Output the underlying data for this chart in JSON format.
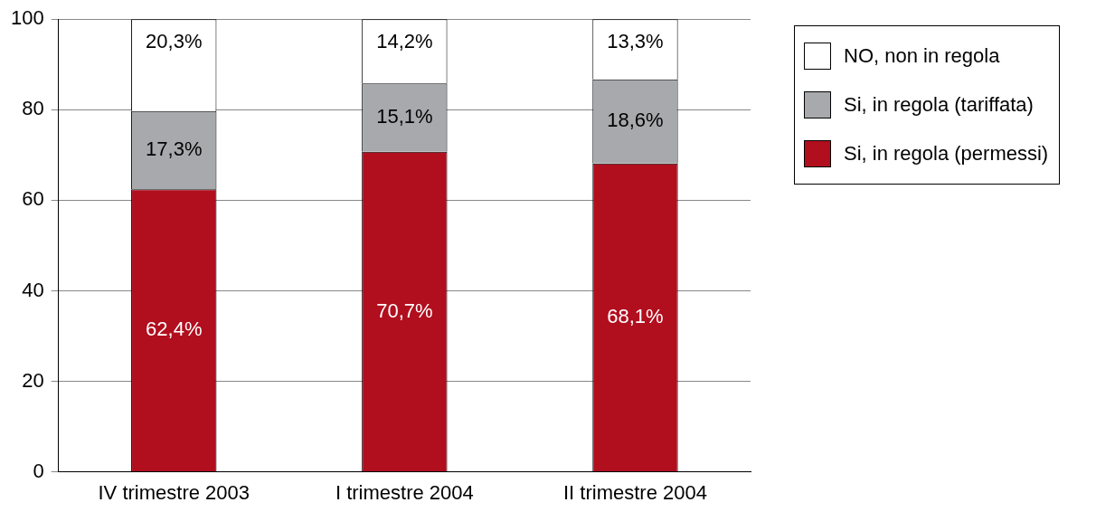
{
  "chart_data": {
    "type": "bar",
    "stacked": true,
    "categories": [
      "IV trimestre 2003",
      "I trimestre 2004",
      "II trimestre 2004"
    ],
    "series": [
      {
        "name": "Si, in regola (permessi)",
        "color": "#b10e1e",
        "values": [
          62.4,
          70.7,
          68.1
        ],
        "value_labels": [
          "62,4%",
          "70,7%",
          "68,1%"
        ]
      },
      {
        "name": "Si, in regola (tariffata)",
        "color": "#a7a9ac",
        "values": [
          17.3,
          15.1,
          18.6
        ],
        "value_labels": [
          "17,3%",
          "15,1%",
          "18,6%"
        ]
      },
      {
        "name": "NO, non in regola",
        "color": "#ffffff",
        "values": [
          20.3,
          14.2,
          13.3
        ],
        "value_labels": [
          "20,3%",
          "14,2%",
          "13,3%"
        ]
      }
    ],
    "ylim": [
      0,
      100
    ],
    "yticks": [
      0,
      20,
      40,
      60,
      80,
      100
    ],
    "grid": "y",
    "legend": "top right"
  }
}
